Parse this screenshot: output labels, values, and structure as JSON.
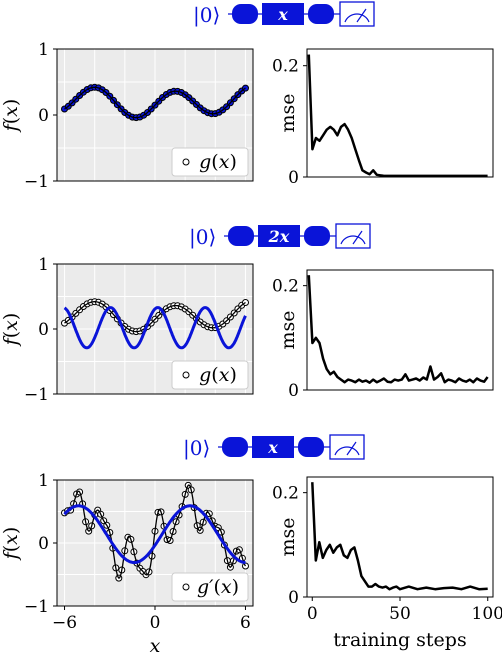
{
  "colors": {
    "accent": "#0a14d8",
    "panel_bg": "#ebebeb",
    "grid": "#ffffff",
    "ink": "#000000",
    "faded": "#9a9a9a"
  },
  "circuits": [
    {
      "ket": "|0⟩",
      "gate": "x"
    },
    {
      "ket": "|0⟩",
      "gate": "2x"
    },
    {
      "ket": "|0⟩",
      "gate": "x"
    }
  ],
  "chart_data": [
    {
      "type": "scatter",
      "xlim": [
        -6.5,
        6.5
      ],
      "ylim": [
        -1,
        1
      ],
      "yticks": [
        "-1",
        "0",
        "1"
      ],
      "ylabel": "f(x)",
      "legend": "g(x)",
      "legend_position": "bottom-right",
      "grid": true,
      "series": [
        {
          "kind": "points",
          "expr": "g",
          "xmin": -6,
          "xmax": 6,
          "count": 49,
          "fill": "blue"
        },
        {
          "kind": "line",
          "expr": "g",
          "xmin": -6,
          "xmax": 6
        }
      ]
    },
    {
      "type": "line",
      "xlim": [
        -1,
        103
      ],
      "ylim": [
        0,
        0.23
      ],
      "yticks": [
        "0",
        "0.2"
      ],
      "ylabel": "mse",
      "x": [
        0,
        2,
        4,
        6,
        8,
        10,
        12,
        14,
        16,
        18,
        20,
        22,
        24,
        26,
        28,
        30,
        32,
        34,
        36,
        38,
        40,
        42,
        44,
        46,
        48,
        50,
        52,
        54,
        56,
        58,
        60,
        70,
        80,
        90,
        100
      ],
      "y": [
        0.22,
        0.05,
        0.07,
        0.065,
        0.075,
        0.085,
        0.09,
        0.085,
        0.075,
        0.09,
        0.095,
        0.085,
        0.07,
        0.05,
        0.03,
        0.012,
        0.008,
        0.005,
        0.012,
        0.004,
        0.003,
        0.002,
        0.002,
        0.002,
        0.002,
        0.002,
        0.002,
        0.002,
        0.002,
        0.002,
        0.002,
        0.002,
        0.002,
        0.002,
        0.002
      ]
    },
    {
      "type": "scatter",
      "xlim": [
        -6.5,
        6.5
      ],
      "ylim": [
        -1,
        1
      ],
      "yticks": [
        "-1",
        "0",
        "1"
      ],
      "ylabel": "f(x)",
      "legend": "g(x)",
      "legend_position": "bottom-right",
      "grid": true,
      "series": [
        {
          "kind": "points",
          "expr": "g",
          "xmin": -6,
          "xmax": 6,
          "count": 49,
          "fill": "white"
        },
        {
          "kind": "line",
          "expr": "g",
          "xmin": -6,
          "xmax": 6
        },
        {
          "kind": "blue_line",
          "expr": "b2",
          "xmin": -6,
          "xmax": 6
        }
      ]
    },
    {
      "type": "line",
      "xlim": [
        -1,
        103
      ],
      "ylim": [
        0,
        0.23
      ],
      "yticks": [
        "0",
        "0.2"
      ],
      "ylabel": "mse",
      "x": [
        0,
        2,
        4,
        6,
        8,
        10,
        12,
        14,
        16,
        18,
        20,
        22,
        24,
        26,
        28,
        30,
        32,
        34,
        36,
        38,
        40,
        42,
        44,
        46,
        48,
        50,
        52,
        54,
        56,
        58,
        60,
        62,
        64,
        66,
        68,
        70,
        72,
        74,
        76,
        78,
        80,
        82,
        84,
        86,
        88,
        90,
        92,
        94,
        96,
        98,
        100
      ],
      "y": [
        0.22,
        0.09,
        0.1,
        0.09,
        0.06,
        0.04,
        0.03,
        0.035,
        0.025,
        0.02,
        0.015,
        0.02,
        0.018,
        0.015,
        0.02,
        0.016,
        0.018,
        0.014,
        0.02,
        0.015,
        0.018,
        0.022,
        0.016,
        0.015,
        0.02,
        0.018,
        0.02,
        0.03,
        0.018,
        0.02,
        0.022,
        0.018,
        0.024,
        0.02,
        0.045,
        0.02,
        0.025,
        0.032,
        0.015,
        0.02,
        0.018,
        0.015,
        0.022,
        0.018,
        0.016,
        0.02,
        0.015,
        0.022,
        0.018,
        0.016,
        0.025
      ]
    },
    {
      "type": "scatter",
      "xlim": [
        -6.5,
        6.5
      ],
      "ylim": [
        -1,
        1
      ],
      "xticks": [
        "-6",
        "0",
        "6"
      ],
      "xtick_values": [
        -6,
        0,
        6
      ],
      "yticks": [
        "-1",
        "0",
        "1"
      ],
      "xlabel": "x",
      "ylabel": "f(x)",
      "legend": "g′(x)",
      "legend_position": "bottom-right",
      "grid": true,
      "series": [
        {
          "kind": "points",
          "expr": "gp",
          "xmin": -6,
          "xmax": 6,
          "count": 61,
          "fill": "white"
        },
        {
          "kind": "line",
          "expr": "gp",
          "xmin": -6,
          "xmax": 6
        },
        {
          "kind": "blue_line",
          "expr": "b3",
          "xmin": -6,
          "xmax": 6
        }
      ]
    },
    {
      "type": "line",
      "xlim": [
        -3,
        103
      ],
      "ylim": [
        0,
        0.23
      ],
      "xticks": [
        "0",
        "50",
        "100"
      ],
      "xtick_values": [
        0,
        50,
        100
      ],
      "yticks": [
        "0",
        "0.2"
      ],
      "xlabel": "training steps",
      "ylabel": "mse",
      "x": [
        0,
        2,
        4,
        6,
        8,
        10,
        12,
        14,
        16,
        18,
        20,
        22,
        24,
        26,
        28,
        30,
        32,
        34,
        36,
        38,
        40,
        42,
        44,
        46,
        48,
        50,
        55,
        60,
        65,
        70,
        75,
        80,
        85,
        90,
        95,
        100
      ],
      "y": [
        0.22,
        0.07,
        0.105,
        0.075,
        0.09,
        0.1,
        0.085,
        0.095,
        0.1,
        0.08,
        0.075,
        0.09,
        0.095,
        0.07,
        0.04,
        0.03,
        0.02,
        0.02,
        0.025,
        0.02,
        0.018,
        0.02,
        0.015,
        0.018,
        0.02,
        0.015,
        0.02,
        0.015,
        0.018,
        0.015,
        0.017,
        0.018,
        0.015,
        0.02,
        0.015,
        0.016
      ]
    }
  ]
}
